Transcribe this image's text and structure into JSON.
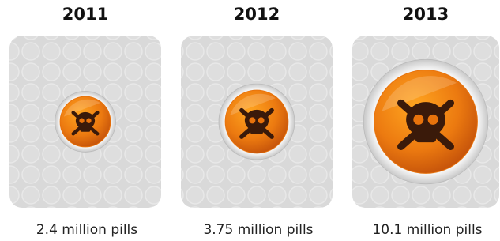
{
  "chart_data": {
    "type": "bubble",
    "categories": [
      "2011",
      "2012",
      "2013"
    ],
    "values": [
      2.4,
      3.75,
      10.1
    ],
    "value_labels": [
      "2.4 million pills",
      "3.75 million pills",
      "10.1 million pills"
    ],
    "color": "#e8730c"
  }
}
